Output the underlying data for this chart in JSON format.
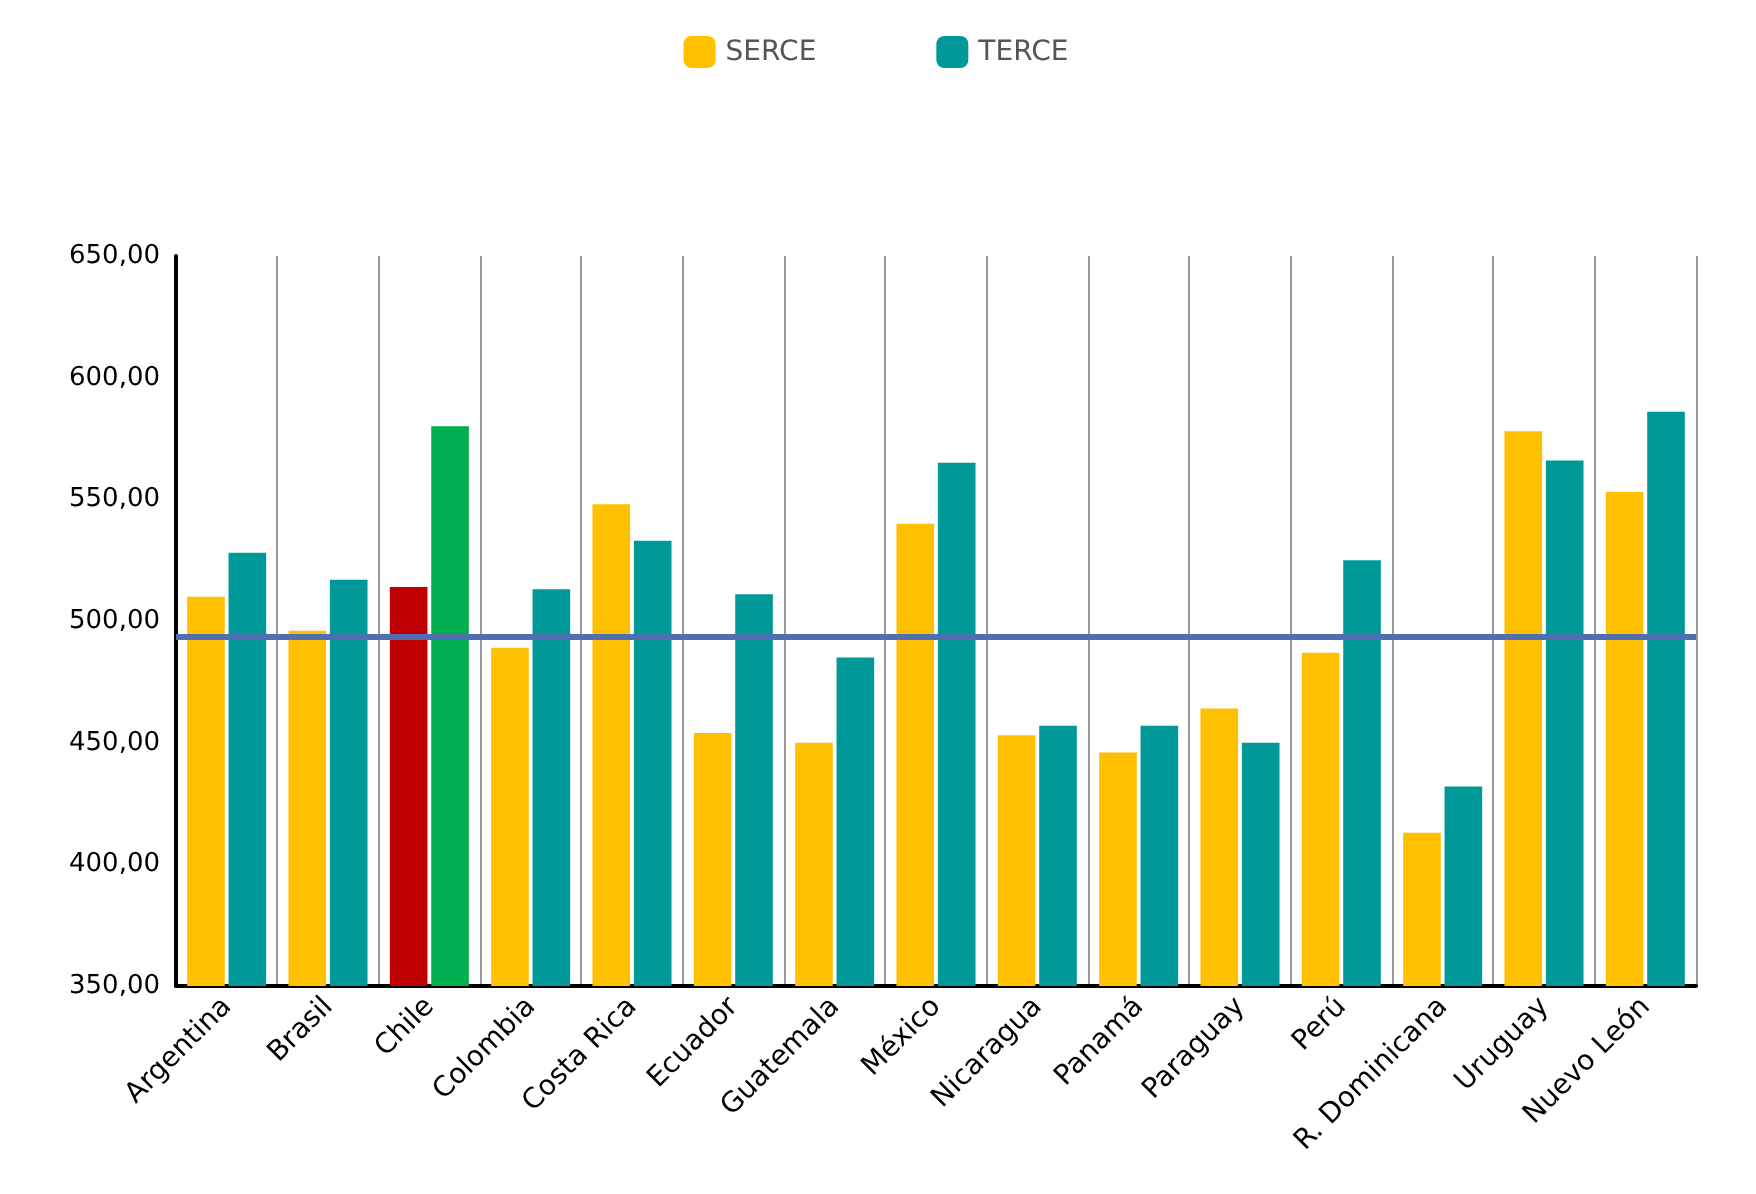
{
  "chart_data": {
    "type": "bar",
    "categories": [
      "Argentina",
      "Brasil",
      "Chile",
      "Colombia",
      "Costa Rica",
      "Ecuador",
      "Guatemala",
      "México",
      "Nicaragua",
      "Panamá",
      "Paraguay",
      "Perú",
      "R. Dominicana",
      "Uruguay",
      "Nuevo León"
    ],
    "series": [
      {
        "name": "SERCE",
        "color": "#ffc000",
        "colors": [
          "#ffc000",
          "#ffc000",
          "#c00000",
          "#ffc000",
          "#ffc000",
          "#ffc000",
          "#ffc000",
          "#ffc000",
          "#ffc000",
          "#ffc000",
          "#ffc000",
          "#ffc000",
          "#ffc000",
          "#ffc000",
          "#ffc000"
        ],
        "values": [
          510,
          496,
          514,
          489,
          548,
          454,
          450,
          540,
          453,
          446,
          464,
          487,
          413,
          578,
          553
        ]
      },
      {
        "name": "TERCE",
        "color": "#009999",
        "colors": [
          "#009999",
          "#009999",
          "#00b050",
          "#009999",
          "#009999",
          "#009999",
          "#009999",
          "#009999",
          "#009999",
          "#009999",
          "#009999",
          "#009999",
          "#009999",
          "#009999",
          "#009999"
        ],
        "values": [
          528,
          517,
          580,
          513,
          533,
          511,
          485,
          565,
          457,
          457,
          450,
          525,
          432,
          566,
          586
        ]
      }
    ],
    "ylim": [
      350,
      650
    ],
    "yticks": [
      {
        "value": 350,
        "label": "350,00"
      },
      {
        "value": 400,
        "label": "400,00"
      },
      {
        "value": 450,
        "label": "450,00"
      },
      {
        "value": 500,
        "label": "500,00"
      },
      {
        "value": 550,
        "label": "550,00"
      },
      {
        "value": 600,
        "label": "600,00"
      },
      {
        "value": 650,
        "label": "650,00"
      }
    ],
    "ref_lines": [
      {
        "axis": "y",
        "value": 494,
        "color": "#4f6fb0"
      }
    ],
    "grid": "x",
    "legend": "top"
  }
}
